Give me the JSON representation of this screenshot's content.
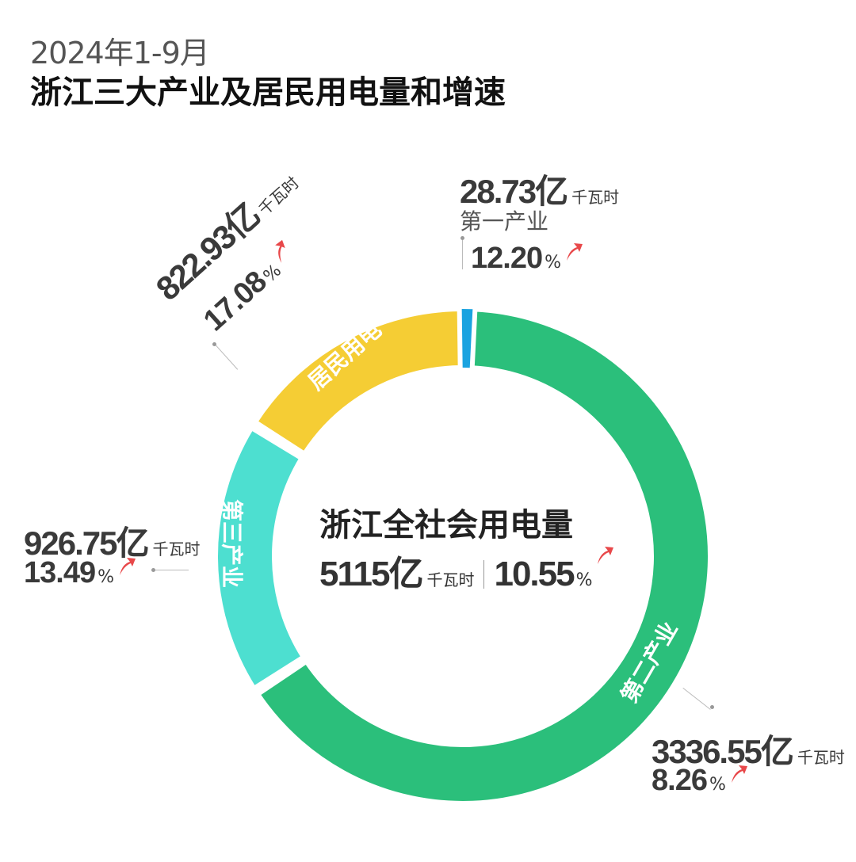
{
  "header": {
    "period": "2024年1-9月",
    "title": "浙江三大产业及居民用电量和增速"
  },
  "center": {
    "title": "浙江全社会用电量",
    "total_value": "5115亿",
    "total_unit": "千瓦时",
    "growth": "10.55",
    "percent_sign": "%"
  },
  "segments": [
    {
      "key": "primary",
      "name": "第一产业",
      "value_text": "28.73亿",
      "unit": "千瓦时",
      "growth": "12.20",
      "color": "#1aa3e0"
    },
    {
      "key": "secondary",
      "name": "第二产业",
      "value_text": "3336.55亿",
      "unit": "千瓦时",
      "growth": "8.26",
      "color": "#2bbf7b"
    },
    {
      "key": "tertiary",
      "name": "第三产业",
      "value_text": "926.75亿",
      "unit": "千瓦时",
      "growth": "13.49",
      "color": "#4ddfd0"
    },
    {
      "key": "resident",
      "name": "居民用电",
      "value_text": "822.93亿",
      "unit": "千瓦时",
      "growth": "17.08",
      "color": "#f5cd34"
    }
  ],
  "chart_data": {
    "type": "pie",
    "style": "donut",
    "title": "浙江三大产业及居民用电量和增速",
    "subtitle": "2024年1-9月",
    "unit": "亿千瓦时",
    "categories": [
      "第一产业",
      "第二产业",
      "第三产业",
      "居民用电"
    ],
    "values": [
      28.73,
      3336.55,
      926.75,
      822.93
    ],
    "growth_percent": [
      12.2,
      8.26,
      13.49,
      17.08
    ],
    "total": 5115,
    "total_growth_percent": 10.55,
    "colors": [
      "#1aa3e0",
      "#2bbf7b",
      "#4ddfd0",
      "#f5cd34"
    ],
    "growth_arrow_color": "#e8484a"
  }
}
